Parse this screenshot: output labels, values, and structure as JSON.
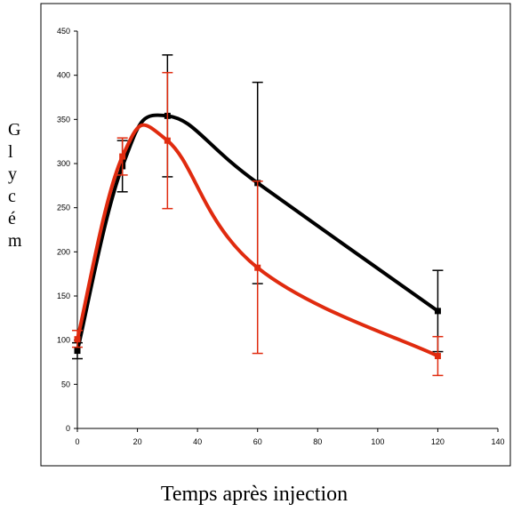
{
  "chart_data": {
    "type": "line",
    "title": "",
    "xlabel": "Temps après injection",
    "ylabel": "Glycém",
    "xlim": [
      0,
      140
    ],
    "ylim": [
      0,
      450
    ],
    "xticks": [
      0,
      20,
      40,
      60,
      80,
      100,
      120,
      140
    ],
    "yticks": [
      0,
      50,
      100,
      150,
      200,
      250,
      300,
      350,
      400,
      450
    ],
    "grid": false,
    "legend": "none",
    "series": [
      {
        "color": "#000000",
        "x": [
          0,
          15,
          30,
          60,
          120
        ],
        "y": [
          88,
          297,
          354,
          278,
          133
        ],
        "err_low": [
          79,
          268,
          285,
          164,
          87
        ],
        "err_high": [
          97,
          326,
          423,
          392,
          179
        ]
      },
      {
        "color": "#e02b0f",
        "x": [
          0,
          15,
          30,
          60,
          120
        ],
        "y": [
          101,
          308,
          326,
          182,
          82
        ],
        "err_low": [
          92,
          287,
          249,
          85,
          60
        ],
        "err_high": [
          111,
          329,
          403,
          280,
          104
        ]
      }
    ]
  }
}
